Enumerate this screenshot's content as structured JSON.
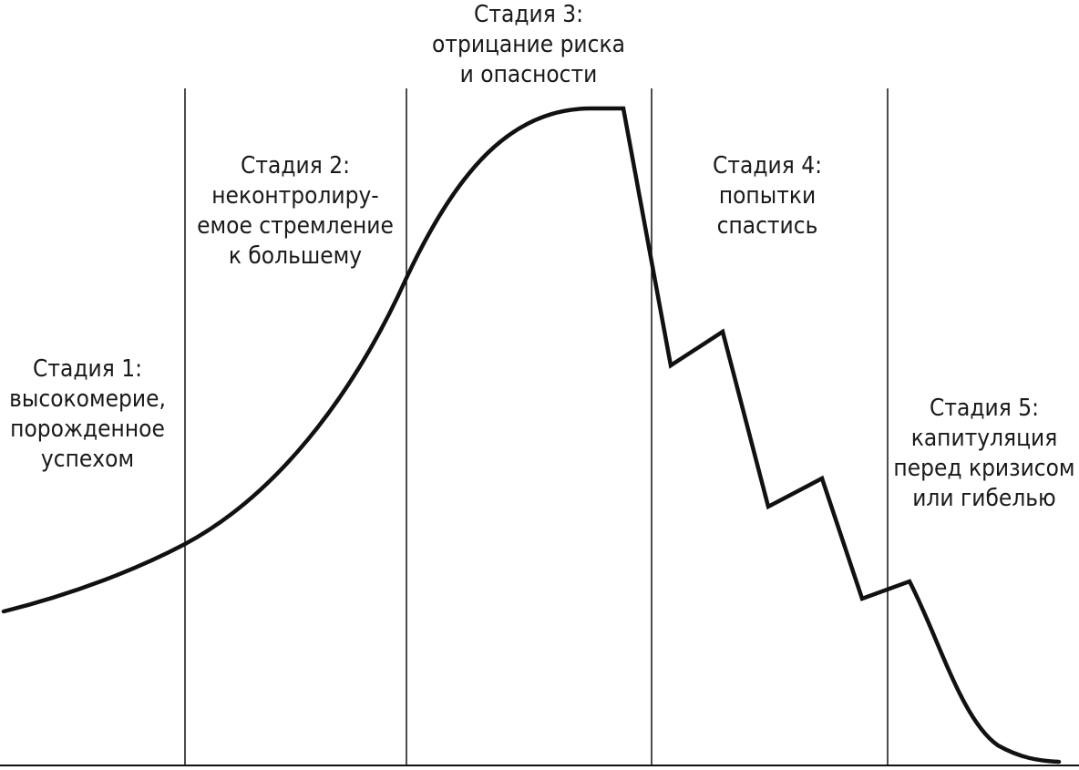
{
  "colors": {
    "line": "#111111",
    "text": "#1a1a1a",
    "background": "#ffffff"
  },
  "stages": [
    {
      "title": "Стадия 1:",
      "lines": [
        "высокомерие,",
        "порожденное",
        "успехом"
      ]
    },
    {
      "title": "Стадия 2:",
      "lines": [
        "неконтролиру-",
        "емое стремление",
        "к большему"
      ]
    },
    {
      "title": "Стадия 3:",
      "lines": [
        "отрицание риска",
        "и опасности"
      ]
    },
    {
      "title": "Стадия 4:",
      "lines": [
        "попытки",
        "спастись"
      ]
    },
    {
      "title": "Стадия 5:",
      "lines": [
        "капитуляция",
        "перед кризисом",
        "или гибелью"
      ]
    }
  ]
}
